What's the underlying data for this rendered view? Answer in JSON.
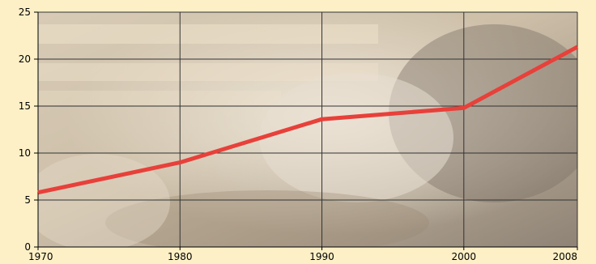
{
  "chart_data": {
    "type": "line",
    "title": "",
    "xlabel": "",
    "ylabel": "",
    "x_ticks": [
      "1970",
      "1980",
      "1990",
      "2000",
      "2008"
    ],
    "y_ticks": [
      "0",
      "5",
      "10",
      "15",
      "20",
      "25"
    ],
    "xlim": [
      1970,
      2008
    ],
    "ylim": [
      0,
      25
    ],
    "grid": true,
    "series": [
      {
        "x": [
          1970,
          1980,
          1990,
          2000,
          2008
        ],
        "values": [
          5.8,
          9.0,
          13.6,
          14.8,
          21.3
        ],
        "color": "#e8403a"
      }
    ],
    "colors": {
      "page_background": "#fdf0c6",
      "grid": "#333333",
      "axis": "#000000",
      "photo_base": "#c9b8a0"
    }
  }
}
